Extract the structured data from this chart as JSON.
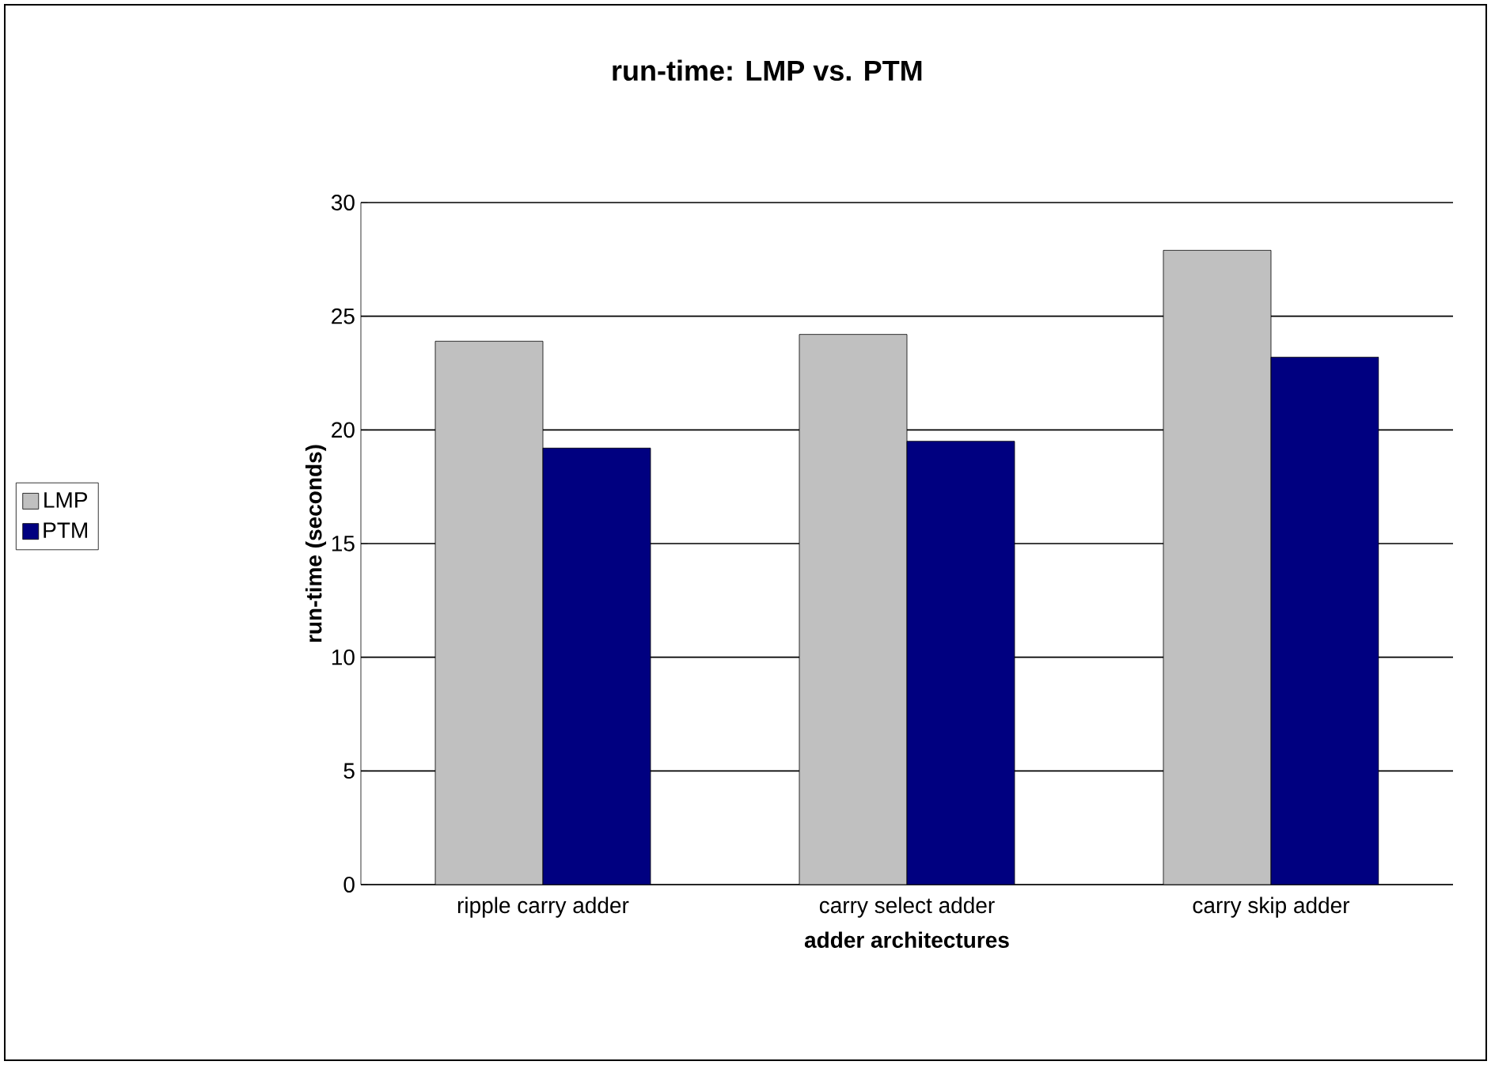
{
  "chart_data": {
    "type": "bar",
    "title": "run-time: LMP vs. PTM",
    "xlabel": "adder architectures",
    "ylabel": "run-time (seconds)",
    "categories": [
      "ripple carry adder",
      "carry select adder",
      "carry skip adder"
    ],
    "series": [
      {
        "name": "LMP",
        "color": "#c0c0c0",
        "values": [
          23.9,
          24.2,
          27.9
        ]
      },
      {
        "name": "PTM",
        "color": "#000080",
        "values": [
          19.2,
          19.5,
          23.2
        ]
      }
    ],
    "ylim": [
      0,
      30
    ],
    "yticks": [
      0,
      5,
      10,
      15,
      20,
      25,
      30
    ],
    "grid": "y",
    "legend": "left"
  }
}
